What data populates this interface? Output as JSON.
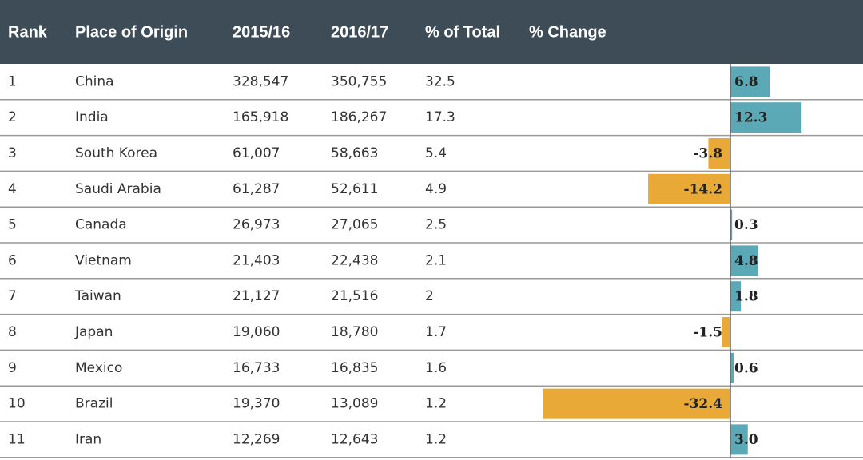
{
  "table": {
    "headers": [
      "Rank",
      "Place of Origin",
      "2015/16",
      "2016/17",
      "% of Total",
      "% Change"
    ],
    "rows": [
      [
        "1",
        "China",
        "328,547",
        "350,755",
        "32.5"
      ],
      [
        "2",
        "India",
        "165,918",
        "186,267",
        "17.3"
      ],
      [
        "3",
        "South Korea",
        "61,007",
        "58,663",
        "5.4"
      ],
      [
        "4",
        "Saudi Arabia",
        "61,287",
        "52,611",
        "4.9"
      ],
      [
        "5",
        "Canada",
        "26,973",
        "27,065",
        "2.5"
      ],
      [
        "6",
        "Vietnam",
        "21,403",
        "22,438",
        "2.1"
      ],
      [
        "7",
        "Taiwan",
        "21,127",
        "21,516",
        "2"
      ],
      [
        "8",
        "Japan",
        "19,060",
        "18,780",
        "1.7"
      ],
      [
        "9",
        "Mexico",
        "16,733",
        "16,835",
        "1.6"
      ],
      [
        "10",
        "Brazil",
        "19,370",
        "13,089",
        "1.2"
      ],
      [
        "11",
        "Iran",
        "12,269",
        "12,643",
        "1.2"
      ]
    ],
    "change": {
      "values": [
        6.8,
        12.3,
        -3.8,
        -14.2,
        0.3,
        4.8,
        1.8,
        -1.5,
        0.6,
        -32.4,
        3.0
      ],
      "value_labels": [
        "6.8",
        "12.3",
        "-3.8",
        "-14.2",
        "0.3",
        "4.8",
        "1.8",
        "-1.5",
        "0.6",
        "-32.4",
        "3.0"
      ]
    }
  }
}
